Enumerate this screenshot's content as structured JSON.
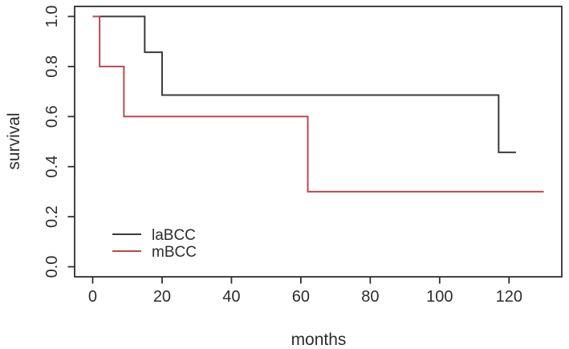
{
  "chart_data": {
    "type": "line",
    "subtype": "kaplan-meier-step",
    "title": "",
    "xlabel": "months",
    "ylabel": "survival",
    "xlim": [
      -5.2,
      135.2
    ],
    "ylim": [
      -0.04,
      1.04
    ],
    "x_ticks": [
      0,
      20,
      40,
      60,
      80,
      100,
      120
    ],
    "x_tick_labels": [
      "0",
      "20",
      "40",
      "60",
      "80",
      "100",
      "120"
    ],
    "y_ticks": [
      0,
      0.2,
      0.4,
      0.6,
      0.8,
      1.0
    ],
    "y_tick_labels": [
      "0.0",
      "0.2",
      "0.4",
      "0.6",
      "0.8",
      "1.0"
    ],
    "grid": false,
    "legend_position": "inside-bottom-left",
    "series": [
      {
        "name": "laBCC",
        "color": "#3a3a3a",
        "events": [
          [
            0,
            1.0
          ],
          [
            15,
            0.857
          ],
          [
            20,
            0.686
          ],
          [
            117,
            0.457
          ]
        ],
        "end_time": 122
      },
      {
        "name": "mBCC",
        "color": "#b9494f",
        "events": [
          [
            0,
            1.0
          ],
          [
            2,
            0.8
          ],
          [
            9,
            0.6
          ],
          [
            62,
            0.3
          ]
        ],
        "end_time": 130
      }
    ]
  },
  "colors": {
    "axis": "#2f2f2f",
    "background": "#ffffff"
  }
}
